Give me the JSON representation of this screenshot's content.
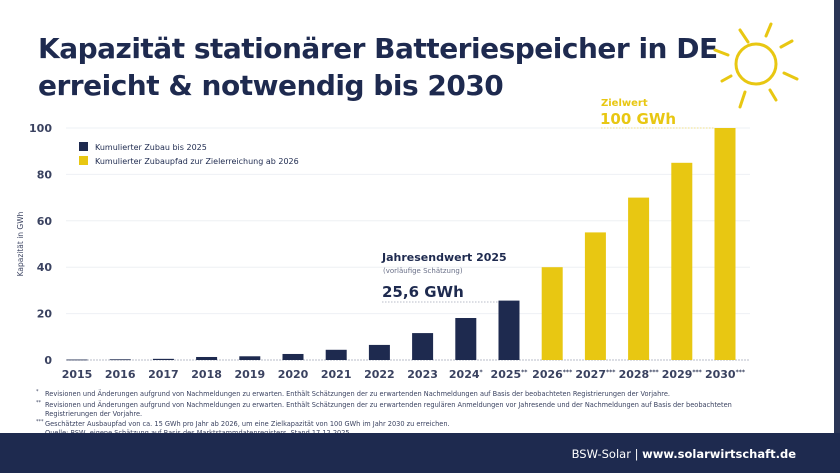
{
  "title_lines": [
    "Kapazität stationärer Batteriespeicher in DE",
    "erreicht & notwendig bis 2030"
  ],
  "colors": {
    "navy": "#1e2a4f",
    "yellow": "#e8c712"
  },
  "sun_icon": "sun-icon",
  "chart_data": {
    "type": "bar",
    "title": "Kapazität stationärer Batteriespeicher in DE erreicht & notwendig bis 2030",
    "ylabel": "Kapazität in GWh",
    "xlabel": "",
    "ylim": [
      0,
      100
    ],
    "yticks": [
      0,
      20,
      40,
      60,
      80,
      100
    ],
    "grid": true,
    "legend_placement": "top-left",
    "categories": [
      "2015",
      "2016",
      "2017",
      "2018",
      "2019",
      "2020",
      "2021",
      "2022",
      "2023",
      "2024*",
      "2025**",
      "2026***",
      "2027***",
      "2028***",
      "2029***",
      "2030***"
    ],
    "series": [
      {
        "name": "Kumulierter Zubau bis 2025",
        "color": "#1e2a4f",
        "values": [
          0.2,
          0.3,
          0.5,
          1.3,
          1.6,
          2.6,
          4.4,
          6.5,
          11.6,
          18.1,
          25.6,
          null,
          null,
          null,
          null,
          null
        ]
      },
      {
        "name": "Kumulierter Zubaupfad zur Zielerreichung ab 2026",
        "color": "#e8c712",
        "values": [
          null,
          null,
          null,
          null,
          null,
          null,
          null,
          null,
          null,
          null,
          null,
          40,
          55,
          70,
          85,
          100
        ]
      }
    ],
    "annotations": [
      {
        "title": "Jahresendwert 2025",
        "subtitle": "(vorläufige Schätzung)",
        "value": "25,6 GWh"
      },
      {
        "title": "Zielwert",
        "value": "100 GWh"
      }
    ]
  },
  "footnotes": [
    {
      "mark": "*",
      "text": "Revisionen und Änderungen aufgrund von Nachmeldungen zu erwarten. Enthält Schätzungen der zu erwartenden Nachmeldungen auf Basis der beobachteten Registrierungen der Vorjahre."
    },
    {
      "mark": "**",
      "text": "Revisionen und Änderungen aufgrund von Nachmeldungen zu erwarten. Enthält Schätzungen der zu erwartenden regulären Anmeldungen vor Jahresende und der Nachmeldungen auf Basis der beobachteten"
    },
    {
      "mark": "",
      "text": "Registrierungen der Vorjahre."
    },
    {
      "mark": "***",
      "text": "Geschätzter Ausbaupfad von ca. 15 GWh pro Jahr ab 2026, um eine Zielkapazität von 100 GWh im Jahr 2030 zu erreichen."
    },
    {
      "mark": "",
      "text": "Quelle: BSW, eigene Schätzung auf Basis des Marktstammdatenregisters. Stand 17.12.2025."
    }
  ],
  "footer": {
    "brand": "BSW-Solar",
    "separator": "|",
    "url": "www.solarwirtschaft.de"
  }
}
